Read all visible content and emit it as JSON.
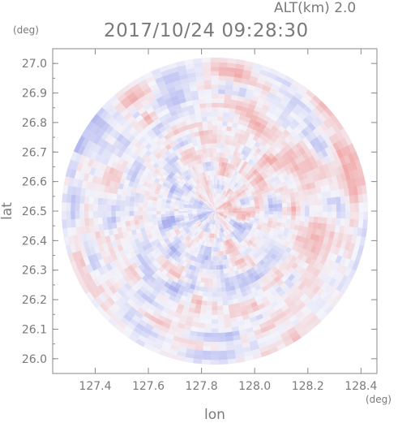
{
  "header": {
    "alt_label": "ALT(km) 2.0",
    "timestamp": "2017/10/24 09:28:30",
    "y_unit": "(deg)",
    "x_unit": "(deg)"
  },
  "colors": {
    "positive": "#f2aaaa",
    "negative": "#aab0ee",
    "neutral": "#f4f4fb",
    "axis": "#888888",
    "text": "#7a7a7a"
  },
  "chart_data": {
    "type": "heatmap",
    "title": "2017/10/24 09:28:30",
    "subtitle": "ALT(km) 2.0",
    "xlabel": "lon",
    "ylabel": "lat",
    "x_unit": "(deg)",
    "y_unit": "(deg)",
    "xlim": [
      127.24,
      128.46
    ],
    "ylim": [
      25.95,
      27.05
    ],
    "x_ticks": [
      127.4,
      127.6,
      127.8,
      128.0,
      128.2,
      128.4
    ],
    "x_tick_labels": [
      "127.4",
      "127.6",
      "127.8",
      "128.0",
      "128.2",
      "128.4"
    ],
    "y_ticks": [
      26.0,
      26.1,
      26.2,
      26.3,
      26.4,
      26.5,
      26.6,
      26.7,
      26.8,
      26.9,
      27.0
    ],
    "y_tick_labels": [
      "26.0",
      "26.1",
      "26.2",
      "26.3",
      "26.4",
      "26.5",
      "26.6",
      "26.7",
      "26.8",
      "26.9",
      "27.0"
    ],
    "radar_center": {
      "lon": 127.85,
      "lat": 26.5
    },
    "radar_range_deg_lat": 0.52,
    "field": "radial velocity (diverging, red/blue)",
    "grid": false
  }
}
